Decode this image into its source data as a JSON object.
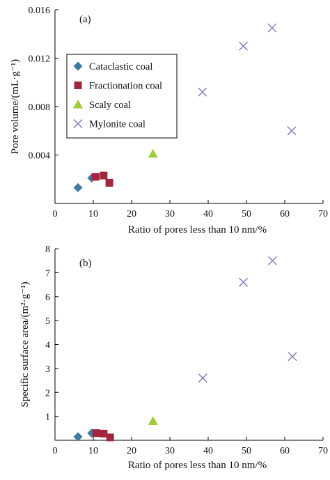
{
  "chart_data": [
    {
      "type": "scatter",
      "panel_label": "(a)",
      "xlabel": "Ratio of pores less than 10 nm/%",
      "ylabel": "Pore volume/(mL·g⁻¹)",
      "xlim": [
        0,
        70
      ],
      "ylim": [
        0,
        0.016
      ],
      "xticks": [
        "0",
        "10",
        "20",
        "30",
        "40",
        "50",
        "60",
        "70"
      ],
      "yticks": [
        "0.004",
        "0.008",
        "0.012",
        "0.016"
      ],
      "ytick_values": [
        0.004,
        0.008,
        0.012,
        0.016
      ],
      "grid": false,
      "legend_position": "left",
      "series": [
        {
          "name": "Cataclastic coal",
          "marker": "diamond",
          "color": "#3d7c9e",
          "points": [
            [
              6,
              0.0013
            ],
            [
              9.6,
              0.0021
            ]
          ]
        },
        {
          "name": "Fractionation coal",
          "marker": "square",
          "color": "#a3263d",
          "points": [
            [
              10.6,
              0.0022
            ],
            [
              12.7,
              0.0023
            ],
            [
              14.2,
              0.0017
            ]
          ]
        },
        {
          "name": "Scaly coal",
          "marker": "triangle",
          "color": "#9dcc3b",
          "points": [
            [
              25.6,
              0.0041
            ]
          ]
        },
        {
          "name": "Mylonite coal",
          "marker": "x",
          "color": "#7b77b8",
          "points": [
            [
              38.5,
              0.0092
            ],
            [
              49.2,
              0.013
            ],
            [
              56.7,
              0.0145
            ],
            [
              61.8,
              0.006
            ]
          ]
        }
      ]
    },
    {
      "type": "scatter",
      "panel_label": "(b)",
      "xlabel": "Ratio of pores less than 10 nm/%",
      "ylabel": "Specific surface area/(m²·g⁻¹)",
      "xlim": [
        0,
        70
      ],
      "ylim": [
        0,
        8
      ],
      "xticks": [
        "0",
        "10",
        "20",
        "30",
        "40",
        "50",
        "60",
        "70"
      ],
      "yticks": [
        "1",
        "2",
        "3",
        "4",
        "5",
        "6",
        "7",
        "8"
      ],
      "ytick_values": [
        1,
        2,
        3,
        4,
        5,
        6,
        7,
        8
      ],
      "grid": false,
      "series": [
        {
          "name": "Cataclastic coal",
          "marker": "diamond",
          "color": "#3d7c9e",
          "points": [
            [
              6,
              0.15
            ],
            [
              9.6,
              0.3
            ]
          ]
        },
        {
          "name": "Fractionation coal",
          "marker": "square",
          "color": "#a3263d",
          "points": [
            [
              10.8,
              0.3
            ],
            [
              12.7,
              0.28
            ],
            [
              14.4,
              0.12
            ]
          ]
        },
        {
          "name": "Scaly coal",
          "marker": "triangle",
          "color": "#9dcc3b",
          "points": [
            [
              25.6,
              0.8
            ]
          ]
        },
        {
          "name": "Mylonite coal",
          "marker": "x",
          "color": "#7b77b8",
          "points": [
            [
              38.6,
              2.6
            ],
            [
              49.2,
              6.6
            ],
            [
              56.8,
              7.5
            ],
            [
              62,
              3.5
            ]
          ]
        }
      ]
    }
  ]
}
